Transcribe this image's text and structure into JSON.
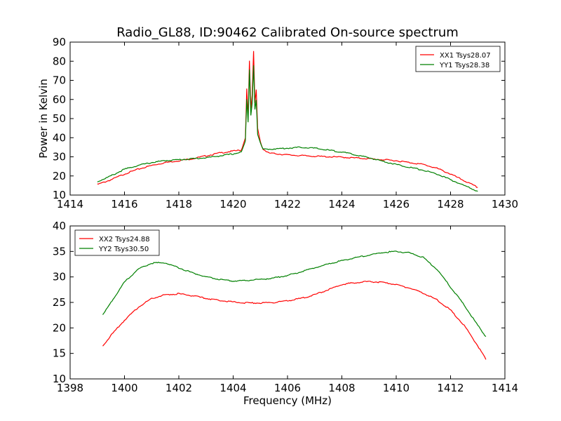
{
  "chart_data": [
    {
      "type": "line",
      "title": "Radio_GL88, ID:90462 Calibrated On-source spectrum",
      "ylabel": "Power in Kelvin",
      "xlabel": "",
      "xlim": [
        1414,
        1430
      ],
      "ylim": [
        10,
        90
      ],
      "xticks": [
        1414,
        1416,
        1418,
        1420,
        1422,
        1424,
        1426,
        1428,
        1430
      ],
      "yticks": [
        10,
        20,
        30,
        40,
        50,
        60,
        70,
        80,
        90
      ],
      "legend": "top-right",
      "grid": false,
      "series": [
        {
          "name": "XX1 Tsys28.07",
          "color": "#ff0000",
          "points": [
            [
              1415.0,
              15.5
            ],
            [
              1415.5,
              18.0
            ],
            [
              1416.0,
              21.0
            ],
            [
              1416.5,
              23.5
            ],
            [
              1417.0,
              25.5
            ],
            [
              1417.5,
              27.0
            ],
            [
              1418.0,
              28.0
            ],
            [
              1418.5,
              29.0
            ],
            [
              1419.0,
              30.5
            ],
            [
              1419.5,
              32.0
            ],
            [
              1420.0,
              33.0
            ],
            [
              1420.3,
              33.5
            ],
            [
              1420.45,
              40
            ],
            [
              1420.5,
              66
            ],
            [
              1420.55,
              50
            ],
            [
              1420.6,
              80
            ],
            [
              1420.65,
              55
            ],
            [
              1420.7,
              62
            ],
            [
              1420.75,
              85
            ],
            [
              1420.8,
              58
            ],
            [
              1420.85,
              65
            ],
            [
              1420.9,
              45
            ],
            [
              1421.0,
              38
            ],
            [
              1421.1,
              34
            ],
            [
              1421.3,
              32
            ],
            [
              1422.0,
              31.0
            ],
            [
              1423.0,
              30.3
            ],
            [
              1424.0,
              29.8
            ],
            [
              1425.0,
              29.0
            ],
            [
              1426.0,
              28.0
            ],
            [
              1426.5,
              27.0
            ],
            [
              1427.0,
              26.0
            ],
            [
              1427.5,
              24.0
            ],
            [
              1428.0,
              21.0
            ],
            [
              1428.5,
              17.5
            ],
            [
              1429.0,
              14.0
            ]
          ]
        },
        {
          "name": "YY1 Tsys28.38",
          "color": "#008000",
          "points": [
            [
              1415.0,
              17.0
            ],
            [
              1415.5,
              20.0
            ],
            [
              1416.0,
              23.5
            ],
            [
              1416.5,
              25.5
            ],
            [
              1417.0,
              27.0
            ],
            [
              1417.5,
              28.0
            ],
            [
              1418.0,
              28.5
            ],
            [
              1418.5,
              29.0
            ],
            [
              1419.0,
              29.5
            ],
            [
              1419.5,
              30.5
            ],
            [
              1420.0,
              31.5
            ],
            [
              1420.3,
              32.5
            ],
            [
              1420.45,
              38
            ],
            [
              1420.5,
              60
            ],
            [
              1420.55,
              48
            ],
            [
              1420.6,
              76
            ],
            [
              1420.65,
              52
            ],
            [
              1420.7,
              58
            ],
            [
              1420.75,
              78
            ],
            [
              1420.8,
              55
            ],
            [
              1420.85,
              60
            ],
            [
              1420.9,
              42
            ],
            [
              1421.0,
              37
            ],
            [
              1421.1,
              34
            ],
            [
              1421.3,
              34
            ],
            [
              1422.0,
              34.5
            ],
            [
              1422.5,
              35.0
            ],
            [
              1423.0,
              34.5
            ],
            [
              1424.0,
              32.5
            ],
            [
              1425.0,
              29.5
            ],
            [
              1426.0,
              26.0
            ],
            [
              1426.5,
              24.5
            ],
            [
              1427.0,
              23.0
            ],
            [
              1427.5,
              21.0
            ],
            [
              1428.0,
              18.0
            ],
            [
              1428.5,
              15.0
            ],
            [
              1429.0,
              12.0
            ]
          ]
        }
      ]
    },
    {
      "type": "line",
      "title": "",
      "ylabel": "",
      "xlabel": "Frequency (MHz)",
      "xlim": [
        1398,
        1414
      ],
      "ylim": [
        10,
        40
      ],
      "xticks": [
        1398,
        1400,
        1402,
        1404,
        1406,
        1408,
        1410,
        1412,
        1414
      ],
      "yticks": [
        10,
        15,
        20,
        25,
        30,
        35,
        40
      ],
      "legend": "top-left",
      "grid": false,
      "series": [
        {
          "name": "XX2 Tsys24.88",
          "color": "#ff0000",
          "points": [
            [
              1399.2,
              16.5
            ],
            [
              1399.5,
              18.5
            ],
            [
              1400.0,
              21.5
            ],
            [
              1400.5,
              24.0
            ],
            [
              1401.0,
              25.8
            ],
            [
              1401.5,
              26.5
            ],
            [
              1402.0,
              26.7
            ],
            [
              1402.5,
              26.3
            ],
            [
              1403.0,
              25.8
            ],
            [
              1403.5,
              25.4
            ],
            [
              1404.0,
              25.1
            ],
            [
              1404.5,
              24.9
            ],
            [
              1405.0,
              24.9
            ],
            [
              1405.5,
              25.0
            ],
            [
              1406.0,
              25.3
            ],
            [
              1406.5,
              25.8
            ],
            [
              1407.0,
              26.5
            ],
            [
              1407.5,
              27.5
            ],
            [
              1408.0,
              28.5
            ],
            [
              1408.5,
              28.9
            ],
            [
              1409.0,
              29.1
            ],
            [
              1409.5,
              28.9
            ],
            [
              1410.0,
              28.5
            ],
            [
              1410.5,
              27.8
            ],
            [
              1411.0,
              26.8
            ],
            [
              1411.5,
              25.5
            ],
            [
              1412.0,
              23.5
            ],
            [
              1412.5,
              20.5
            ],
            [
              1413.0,
              16.5
            ],
            [
              1413.3,
              13.8
            ]
          ]
        },
        {
          "name": "YY2 Tsys30.50",
          "color": "#008000",
          "points": [
            [
              1399.2,
              22.5
            ],
            [
              1399.5,
              25.0
            ],
            [
              1400.0,
              29.0
            ],
            [
              1400.5,
              31.5
            ],
            [
              1401.0,
              32.7
            ],
            [
              1401.5,
              32.8
            ],
            [
              1402.0,
              31.8
            ],
            [
              1402.5,
              30.8
            ],
            [
              1403.0,
              30.0
            ],
            [
              1403.5,
              29.5
            ],
            [
              1404.0,
              29.2
            ],
            [
              1404.5,
              29.3
            ],
            [
              1405.0,
              29.5
            ],
            [
              1405.5,
              29.8
            ],
            [
              1406.0,
              30.3
            ],
            [
              1406.5,
              31.0
            ],
            [
              1407.0,
              31.8
            ],
            [
              1407.5,
              32.5
            ],
            [
              1408.0,
              33.2
            ],
            [
              1408.5,
              33.8
            ],
            [
              1409.0,
              34.3
            ],
            [
              1409.5,
              34.8
            ],
            [
              1410.0,
              35.0
            ],
            [
              1410.5,
              34.7
            ],
            [
              1411.0,
              33.8
            ],
            [
              1411.5,
              31.5
            ],
            [
              1412.0,
              28.0
            ],
            [
              1412.5,
              24.5
            ],
            [
              1413.0,
              20.5
            ],
            [
              1413.3,
              18.3
            ]
          ]
        }
      ]
    }
  ]
}
